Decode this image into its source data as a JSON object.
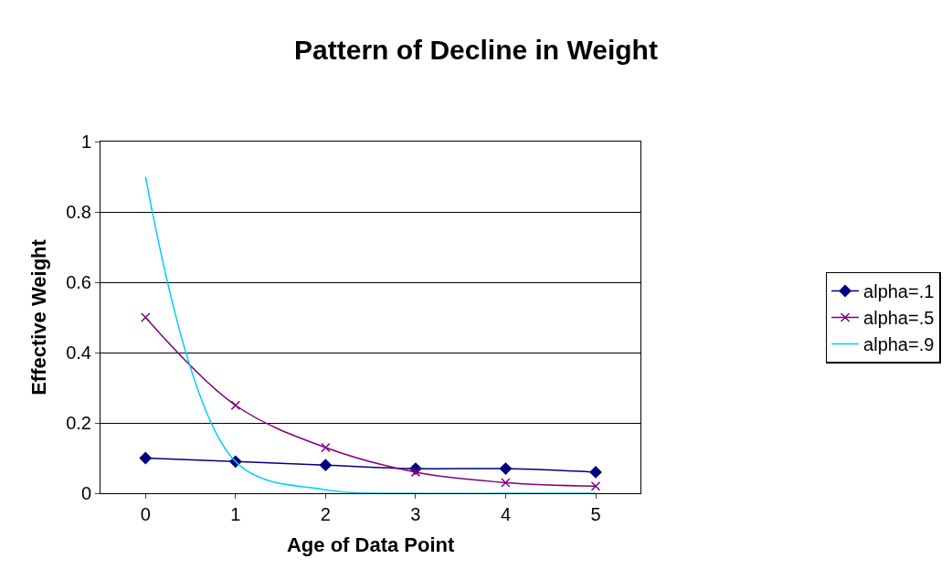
{
  "chart_data": {
    "type": "line",
    "title": "Pattern of Decline in Weight",
    "xlabel": "Age of Data Point",
    "ylabel": "Effective Weight",
    "categories": [
      "0",
      "1",
      "2",
      "3",
      "4",
      "5"
    ],
    "series": [
      {
        "name": "alpha=.1",
        "color": "#000080",
        "marker": "diamond",
        "values": [
          0.1,
          0.09,
          0.08,
          0.07,
          0.07,
          0.06
        ]
      },
      {
        "name": "alpha=.5",
        "color": "#800080",
        "marker": "cross",
        "values": [
          0.5,
          0.25,
          0.13,
          0.06,
          0.03,
          0.02
        ]
      },
      {
        "name": "alpha=.9",
        "color": "#00ccff",
        "marker": "none",
        "values": [
          0.9,
          0.09,
          0.01,
          0,
          0,
          0
        ]
      }
    ],
    "ylim": [
      0,
      1
    ],
    "yticks": [
      0,
      0.2,
      0.4,
      0.6,
      0.8,
      1
    ],
    "grid": "y",
    "legend": "right"
  }
}
